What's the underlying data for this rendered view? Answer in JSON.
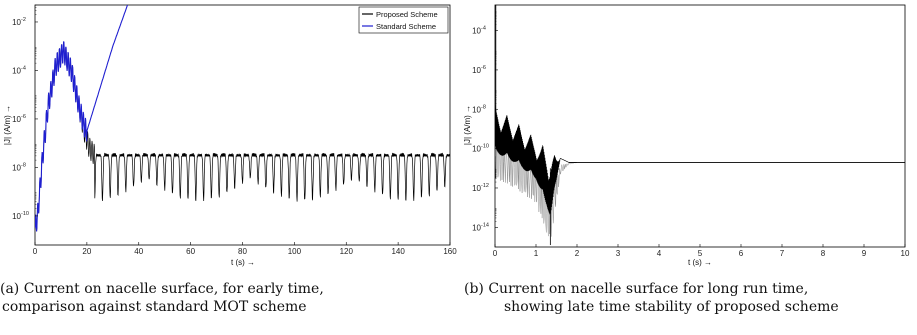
{
  "chart_data": [
    {
      "type": "line",
      "xlabel": "t (s) →",
      "ylabel": "|J| (A/m) →",
      "xlim": [
        0,
        160
      ],
      "ylim_log10": [
        -11.2,
        -1.3
      ],
      "yscale": "log",
      "xticks": [
        0,
        20,
        40,
        60,
        80,
        100,
        120,
        140,
        160
      ],
      "yticks": [
        {
          "exp": -2,
          "label_base": "10",
          "label_exp": "-2"
        },
        {
          "exp": -4,
          "label_base": "10",
          "label_exp": "-4"
        },
        {
          "exp": -6,
          "label_base": "10",
          "label_exp": "-6"
        },
        {
          "exp": -8,
          "label_base": "10",
          "label_exp": "-8"
        },
        {
          "exp": -10,
          "label_base": "10",
          "label_exp": "-10"
        }
      ],
      "legend_position": "top-right",
      "grid": false,
      "series": [
        {
          "name": "Proposed Scheme",
          "color": "#000000",
          "description_points": {
            "t": [
              0,
              1,
              3,
              5,
              8,
              11,
              14,
              17,
              19,
              21,
              23,
              160
            ],
            "log10_J": [
              -10.5,
              -10,
              -7.5,
              -5.5,
              -3.8,
              -3.2,
              -4,
              -5.5,
              -6.5,
              -7.2,
              -7.5,
              -7.5
            ]
          },
          "late_oscillation": {
            "upper_log10": -7.4,
            "lower_log10_min": -9.3
          }
        },
        {
          "name": "Standard Scheme",
          "color": "#1f1fd0",
          "points": {
            "t": [
              0,
              1,
              3,
              5,
              8,
              11,
              14,
              17,
              19,
              20,
              30,
              40
            ],
            "log10_J": [
              -10.5,
              -10,
              -7.5,
              -5.5,
              -3.8,
              -3.2,
              -4,
              -5.5,
              -6.3,
              -6.5,
              -3,
              0
            ]
          }
        }
      ],
      "caption": {
        "line1": "(a) Current on nacelle surface, for early time,",
        "line2": "comparison against standard MOT scheme"
      }
    },
    {
      "type": "line",
      "xlabel": "t (s) →",
      "ylabel": "|J| (A/m) →",
      "xlim": [
        0,
        10
      ],
      "ylim_log10": [
        -15,
        -2.7
      ],
      "yscale": "log",
      "xticks": [
        0,
        1,
        2,
        3,
        4,
        5,
        6,
        7,
        8,
        9,
        10
      ],
      "yticks": [
        {
          "exp": -4,
          "label_base": "10",
          "label_exp": "-4"
        },
        {
          "exp": -6,
          "label_base": "10",
          "label_exp": "-6"
        },
        {
          "exp": -8,
          "label_base": "10",
          "label_exp": "-8"
        },
        {
          "exp": -10,
          "label_base": "10",
          "label_exp": "-10"
        },
        {
          "exp": -12,
          "label_base": "10",
          "label_exp": "-12"
        },
        {
          "exp": -14,
          "label_base": "10",
          "label_exp": "-14"
        }
      ],
      "grid": false,
      "series": [
        {
          "color": "#000000",
          "envelope_upper": {
            "t": [
              0,
              0.5,
              1,
              1.5,
              1.8,
              2,
              10
            ],
            "log10_J": [
              -7.8,
              -8.6,
              -9.5,
              -10.4,
              -10.7,
              -10.7,
              -10.7
            ]
          },
          "envelope_lower": {
            "t": [
              0,
              0.5,
              1,
              1.35,
              1.6,
              1.8,
              2,
              10
            ],
            "log10_J": [
              -11.5,
              -12,
              -12.8,
              -14.9,
              -11.3,
              -10.8,
              -10.7,
              -10.7
            ]
          }
        }
      ],
      "caption": {
        "line1": "(b) Current on nacelle surface for long run time,",
        "line2": "showing late time stability of proposed scheme"
      }
    }
  ]
}
